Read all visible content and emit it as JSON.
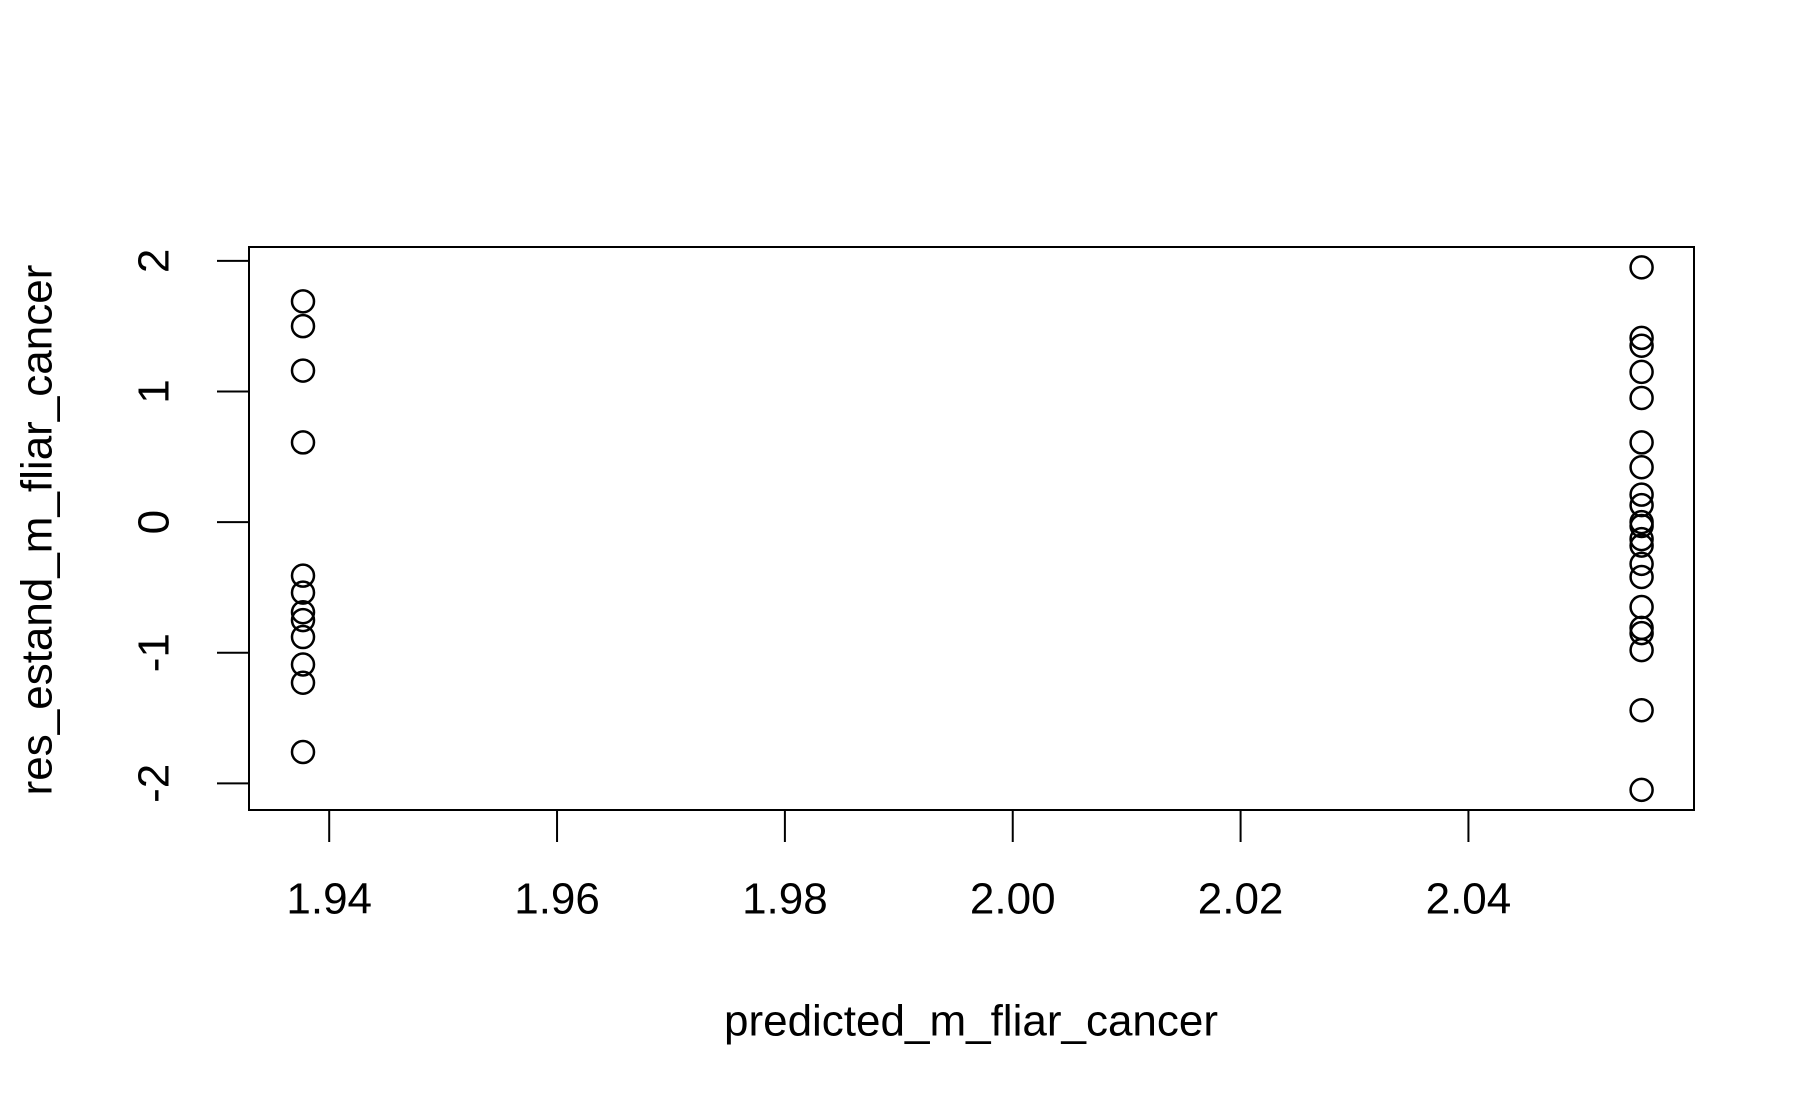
{
  "chart_data": {
    "type": "scatter",
    "xlabel": "predicted_m_fliar_cancer",
    "ylabel": "res_estand_m_fliar_cancer",
    "x": [
      1.9377,
      1.9377,
      1.9377,
      1.9377,
      1.9377,
      1.9377,
      1.9377,
      1.9377,
      1.9377,
      1.9377,
      1.9377,
      1.9377,
      2.0552,
      2.0552,
      2.0552,
      2.0552,
      2.0552,
      2.0552,
      2.0552,
      2.0552,
      2.0552,
      2.0552,
      2.0552,
      2.0552,
      2.0552,
      2.0552,
      2.0552,
      2.0552,
      2.0552,
      2.0552,
      2.0552,
      2.0552,
      2.0552
    ],
    "y": [
      1.69,
      1.5,
      1.16,
      0.61,
      -0.41,
      -0.54,
      -0.69,
      -0.75,
      -0.88,
      -1.09,
      -1.23,
      -1.76,
      1.95,
      1.41,
      1.35,
      1.15,
      0.95,
      0.61,
      0.42,
      0.21,
      0.13,
      0,
      -0.03,
      -0.13,
      -0.18,
      -0.32,
      -0.42,
      -0.65,
      -0.81,
      -0.85,
      -0.98,
      -1.44,
      -2.05
    ],
    "color": "#000000",
    "xlim": [
      1.93296,
      2.0598
    ],
    "ylim": [
      -2.204,
      2.106
    ],
    "xticks": [
      {
        "value": 1.94,
        "label": "1.94"
      },
      {
        "value": 1.96,
        "label": "1.96"
      },
      {
        "value": 1.98,
        "label": "1.98"
      },
      {
        "value": 2.0,
        "label": "2.00"
      },
      {
        "value": 2.02,
        "label": "2.02"
      },
      {
        "value": 2.04,
        "label": "2.04"
      }
    ],
    "yticks": [
      -2,
      -1,
      0,
      1,
      2
    ]
  }
}
